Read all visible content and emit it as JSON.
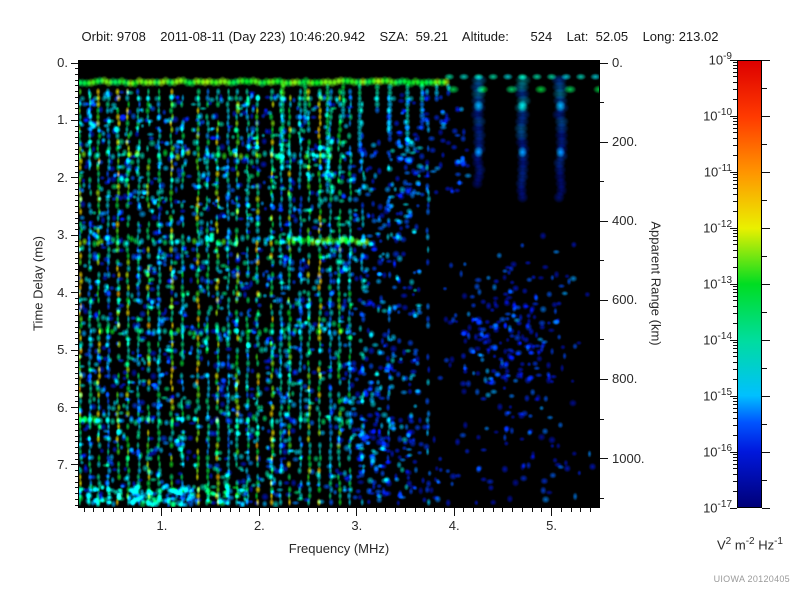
{
  "header": {
    "title": "Orbit: 9708    2011-08-11 (Day 223) 10:46:20.942    SZA:  59.21    Altitude:      524    Lat:  52.05    Long: 213.02"
  },
  "chart_data": {
    "type": "heatmap",
    "description": "Radar sounder ionogram spectrogram: spectral density vs frequency and time delay",
    "x_axis": {
      "label": "Frequency (MHz)",
      "range": [
        0.138,
        5.497
      ],
      "major_ticks": [
        {
          "v": 1,
          "label": "1."
        },
        {
          "v": 2,
          "label": "2."
        },
        {
          "v": 3,
          "label": "3."
        },
        {
          "v": 4,
          "label": "4."
        },
        {
          "v": 5,
          "label": "5."
        }
      ],
      "minor_step": 0.1
    },
    "y_left": {
      "label": "Time Delay (ms)",
      "range": [
        0,
        7.75
      ],
      "major_ticks": [
        {
          "v": 0,
          "label": "0."
        },
        {
          "v": 1,
          "label": "1."
        },
        {
          "v": 2,
          "label": "2."
        },
        {
          "v": 3,
          "label": "3."
        },
        {
          "v": 4,
          "label": "4."
        },
        {
          "v": 5,
          "label": "5."
        },
        {
          "v": 6,
          "label": "6."
        },
        {
          "v": 7,
          "label": "7."
        }
      ],
      "minor_step": 0.1
    },
    "y_right": {
      "label": "Apparent Range (km)",
      "range": [
        0,
        1125
      ],
      "major_ticks": [
        {
          "v": 0,
          "label": "0."
        },
        {
          "v": 200,
          "label": "200."
        },
        {
          "v": 400,
          "label": "400."
        },
        {
          "v": 600,
          "label": "600."
        },
        {
          "v": 800,
          "label": "800."
        },
        {
          "v": 1000,
          "label": "1000."
        }
      ],
      "minor_step": 100
    },
    "colorbar": {
      "exponents": [
        "-9",
        "-10",
        "-11",
        "-12",
        "-13",
        "-14",
        "-15",
        "-16",
        "-17"
      ],
      "base": "10",
      "unit_parts": [
        [
          "V",
          "2"
        ],
        [
          "m",
          "-2"
        ],
        [
          "Hz",
          "-1"
        ]
      ],
      "credit": "UIOWA 20120405",
      "stops": [
        {
          "t": 0.0,
          "c": "#000078"
        },
        {
          "t": 0.125,
          "c": "#0018dd"
        },
        {
          "t": 0.19,
          "c": "#0055ff"
        },
        {
          "t": 0.25,
          "c": "#00c0ff"
        },
        {
          "t": 0.375,
          "c": "#00dd9d"
        },
        {
          "t": 0.5,
          "c": "#00dd22"
        },
        {
          "t": 0.625,
          "c": "#eaf000"
        },
        {
          "t": 0.75,
          "c": "#ff9500"
        },
        {
          "t": 0.875,
          "c": "#ff3a00"
        },
        {
          "t": 1.0,
          "c": "#dd0000"
        }
      ]
    },
    "plot_background": "#000000",
    "features": {
      "top_band": {
        "delay_ms": 0.33,
        "continuous_range_mhz": [
          0.138,
          3.95
        ],
        "blob_range_mhz": [
          3.95,
          5.47
        ],
        "blob_spacing_mhz": 0.15,
        "intensity": 0.52
      },
      "vertical_lines": [
        {
          "f": 0.16,
          "i": 0.6
        },
        {
          "f": 0.26,
          "i": 0.38
        },
        {
          "f": 0.35,
          "i": 0.58
        },
        {
          "f": 0.45,
          "i": 0.33
        },
        {
          "f": 0.55,
          "i": 0.6
        },
        {
          "f": 0.65,
          "i": 0.55
        },
        {
          "f": 0.76,
          "i": 0.36
        },
        {
          "f": 0.86,
          "i": 0.6
        },
        {
          "f": 0.97,
          "i": 0.4
        },
        {
          "f": 1.1,
          "i": 0.62
        },
        {
          "f": 1.21,
          "i": 0.42
        },
        {
          "f": 1.37,
          "i": 0.63
        },
        {
          "f": 1.47,
          "i": 0.4
        },
        {
          "f": 1.57,
          "i": 0.6
        },
        {
          "f": 1.68,
          "i": 0.34
        },
        {
          "f": 1.77,
          "i": 0.56
        },
        {
          "f": 1.88,
          "i": 0.38
        },
        {
          "f": 1.98,
          "i": 0.6
        },
        {
          "f": 2.13,
          "i": 0.58
        },
        {
          "f": 2.22,
          "i": 0.36
        },
        {
          "f": 2.31,
          "i": 0.55
        },
        {
          "f": 2.42,
          "i": 0.32
        },
        {
          "f": 2.51,
          "i": 0.55
        },
        {
          "f": 2.62,
          "i": 0.58
        },
        {
          "f": 2.73,
          "i": 0.36
        },
        {
          "f": 2.82,
          "i": 0.52
        },
        {
          "f": 2.93,
          "i": 0.4
        },
        {
          "f": 3.06,
          "i": 0.3,
          "sparse": true
        },
        {
          "f": 3.33,
          "i": 0.26,
          "sparse": true
        },
        {
          "f": 3.73,
          "i": 0.26,
          "sparse": true
        }
      ],
      "icicles": [
        {
          "f": 2.24,
          "to": 1.9,
          "i": 0.5
        },
        {
          "f": 2.47,
          "to": 1.05,
          "i": 0.46
        },
        {
          "f": 2.7,
          "to": 2.3,
          "i": 0.5
        },
        {
          "f": 2.86,
          "to": 0.95,
          "i": 0.5
        },
        {
          "f": 3.03,
          "to": 1.55,
          "i": 0.38
        },
        {
          "f": 3.21,
          "to": 0.85,
          "i": 0.46
        },
        {
          "f": 3.34,
          "to": 1.35,
          "i": 0.34
        },
        {
          "f": 3.52,
          "to": 1.55,
          "i": 0.4
        },
        {
          "f": 3.67,
          "to": 1.15,
          "i": 0.34
        },
        {
          "f": 3.82,
          "to": 0.7,
          "i": 0.32
        },
        {
          "f": 3.94,
          "to": 0.55,
          "i": 0.3
        }
      ],
      "plumes": [
        {
          "f": 4.25,
          "to": 2.2,
          "i": 0.24
        },
        {
          "f": 4.7,
          "to": 2.45,
          "i": 0.26
        },
        {
          "f": 5.09,
          "to": 2.35,
          "i": 0.24
        }
      ],
      "h_bands": [
        {
          "d": 1.6,
          "f_to": 2.9,
          "i": 0.52
        },
        {
          "d": 3.1,
          "f_to": 3.15,
          "i": 0.5,
          "bright": [
            2.35,
            3.12
          ]
        },
        {
          "d": 4.67,
          "f_to": 2.9,
          "i": 0.46
        },
        {
          "d": 6.22,
          "f_to": 2.9,
          "i": 0.4,
          "bright": [
            0.16,
            0.34
          ]
        }
      ],
      "noise_regions": [
        {
          "x": [
            0.14,
            2.95
          ],
          "y": [
            0.5,
            7.7
          ],
          "n": 1500,
          "i": [
            0.1,
            0.42
          ]
        },
        {
          "x": [
            2.95,
            3.65
          ],
          "y": [
            1.3,
            7.7
          ],
          "n": 420,
          "i": [
            0.1,
            0.34
          ]
        },
        {
          "x": [
            3.4,
            4.15
          ],
          "y": [
            0.5,
            2.3
          ],
          "n": 90,
          "i": [
            0.08,
            0.26
          ]
        },
        {
          "x": [
            3.65,
            5.45
          ],
          "y": [
            2.6,
            6.9
          ],
          "n": 260,
          "i": [
            0.07,
            0.24
          ],
          "gauss": true
        },
        {
          "x": [
            2.95,
            5.45
          ],
          "y": [
            6.3,
            7.7
          ],
          "n": 110,
          "i": [
            0.07,
            0.22
          ]
        },
        {
          "x": [
            0.14,
            1.9
          ],
          "y": [
            7.35,
            7.7
          ],
          "n": 160,
          "i": [
            0.2,
            0.5
          ]
        }
      ]
    }
  }
}
